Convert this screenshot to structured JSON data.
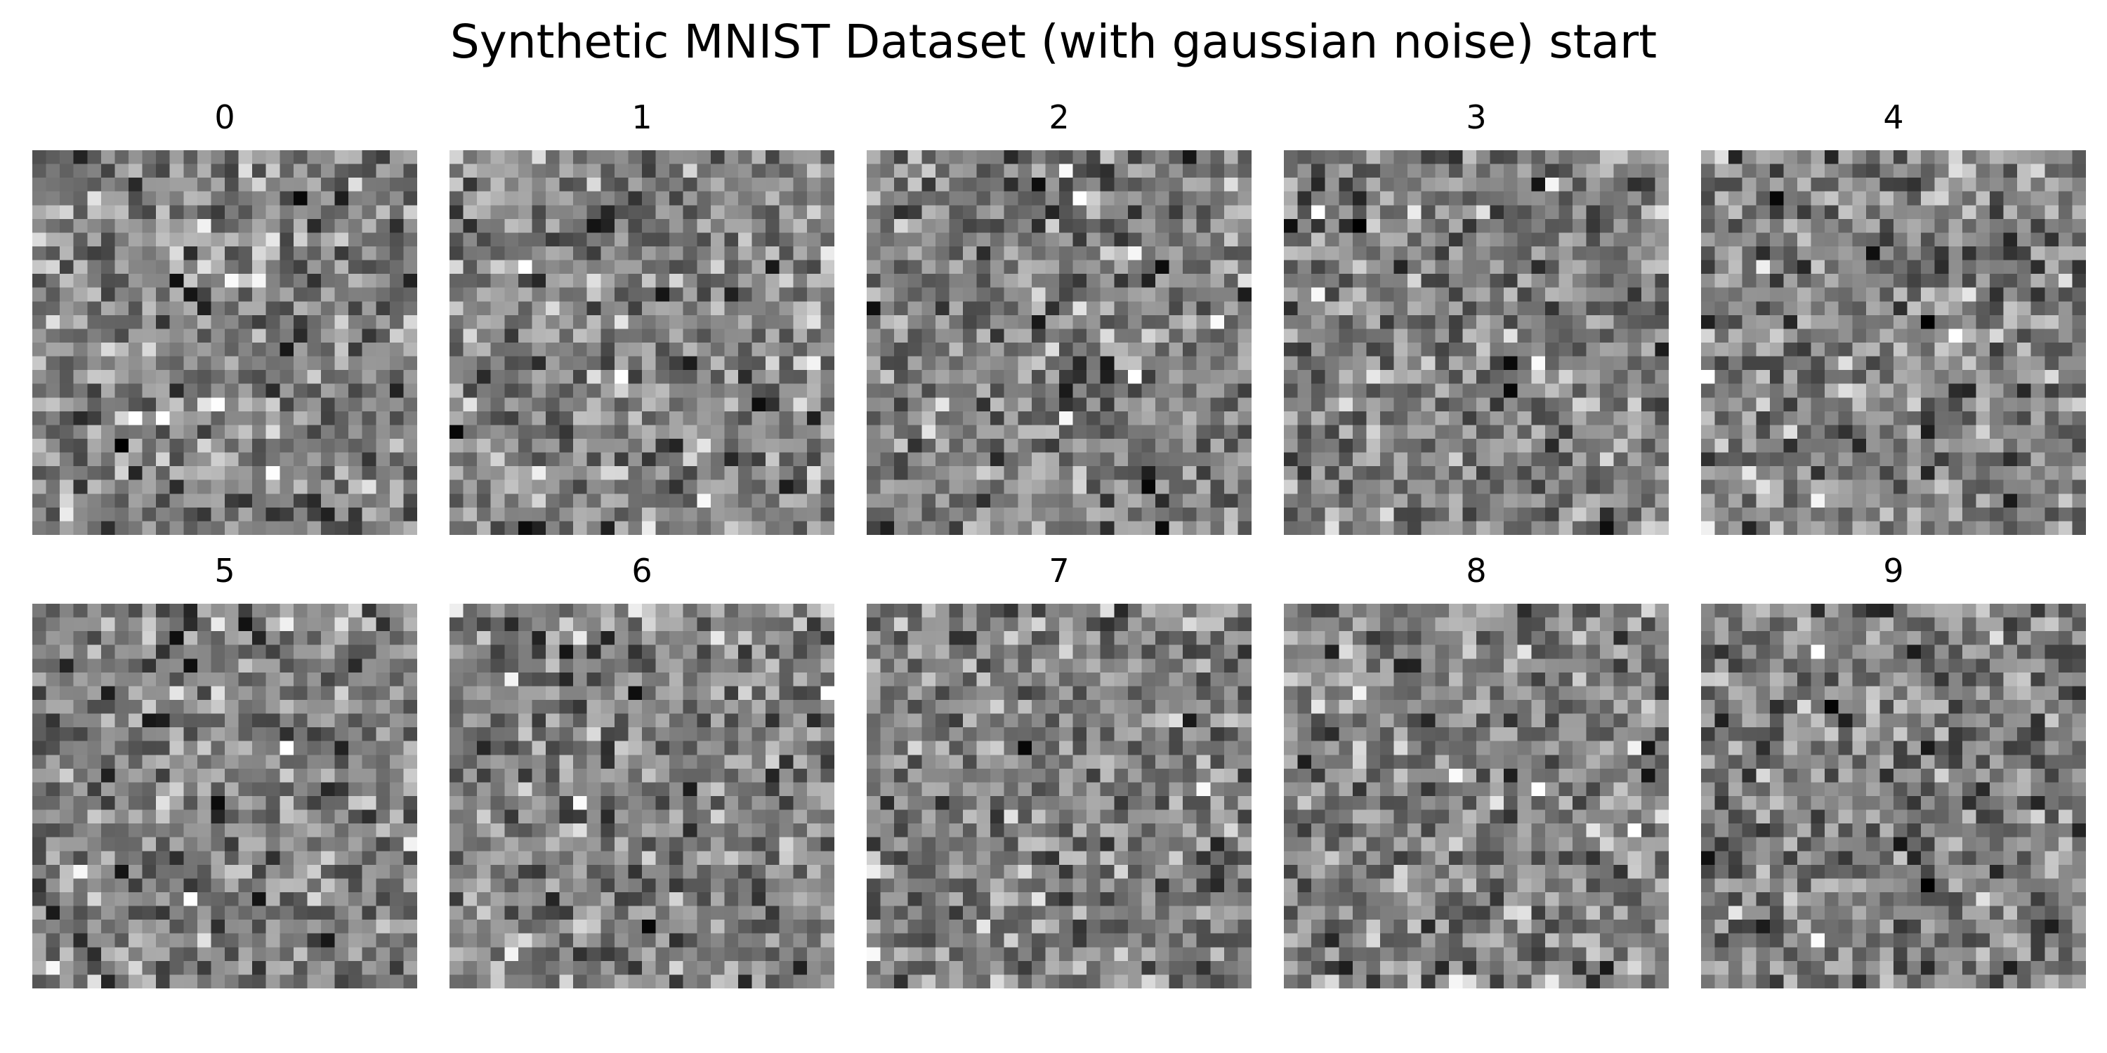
{
  "title": "Synthetic MNIST Dataset (with gaussian noise) start",
  "panels": [
    {
      "label": "0"
    },
    {
      "label": "1"
    },
    {
      "label": "2"
    },
    {
      "label": "3"
    },
    {
      "label": "4"
    },
    {
      "label": "5"
    },
    {
      "label": "6"
    },
    {
      "label": "7"
    },
    {
      "label": "8"
    },
    {
      "label": "9"
    }
  ],
  "colormap": "gray"
}
